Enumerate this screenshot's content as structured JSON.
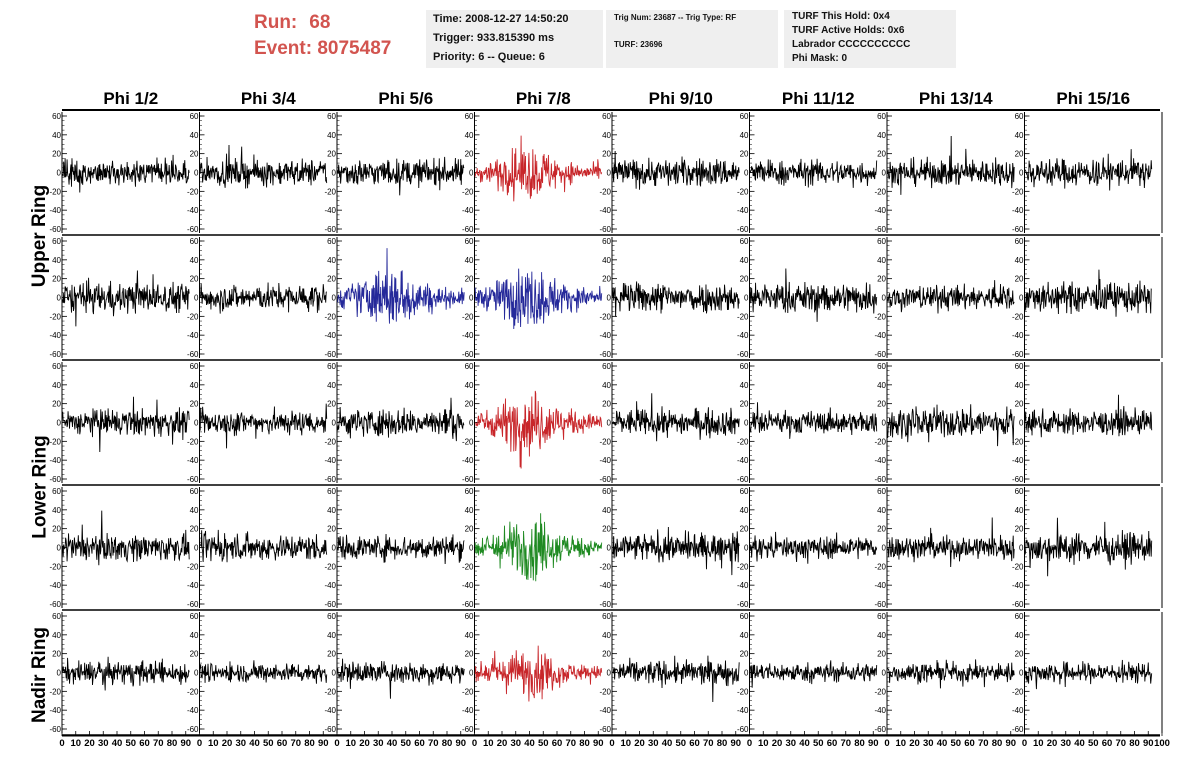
{
  "header": {
    "run_label": "Run:",
    "run_value": "68",
    "event_label": "Event:",
    "event_value": "8075487",
    "time": "Time: 2008-12-27 14:50:20",
    "trigger": "Trigger: 933.815390 ms",
    "priority": "Priority: 6 -- Queue: 6",
    "trig_num": "Trig Num: 23687 -- Trig Type: RF",
    "turf": "TURF: 23696",
    "turf_this_hold": "TURF This Hold: 0x4",
    "turf_active_holds": "TURF Active Holds: 0x6",
    "labrador": "Labrador CCCCCCCCCC",
    "phi_mask": "Phi Mask: 0"
  },
  "rings": [
    {
      "label": "Upper Ring"
    },
    {
      "label": "Lower Ring"
    },
    {
      "label": "Nadir Ring"
    }
  ],
  "chart_data": {
    "type": "line",
    "columns": [
      "Phi 1/2",
      "Phi 3/4",
      "Phi 5/6",
      "Phi 7/8",
      "Phi 9/10",
      "Phi 11/12",
      "Phi 13/14",
      "Phi 15/16"
    ],
    "xlim": [
      0,
      100
    ],
    "ylim": [
      -60,
      60
    ],
    "x_ticks": [
      0,
      10,
      20,
      30,
      40,
      50,
      60,
      70,
      80,
      90
    ],
    "last_x_ticks": [
      0,
      10,
      20,
      30,
      40,
      50,
      60,
      70,
      80,
      90,
      100
    ],
    "y_ticks": [
      60,
      40,
      20,
      0,
      -20,
      -40,
      -60
    ],
    "samples_per_trace": 260,
    "trace_x_end": 92,
    "colors": {
      "default": "#000000",
      "red": "#c8262a",
      "blue": "#25299a",
      "green": "#1f8a22"
    },
    "highlights": [
      {
        "row": 0,
        "col": 3,
        "color": "red",
        "amp": 22
      },
      {
        "row": 1,
        "col": 2,
        "color": "blue",
        "amp": 26
      },
      {
        "row": 1,
        "col": 3,
        "color": "blue",
        "amp": 26
      },
      {
        "row": 2,
        "col": 3,
        "color": "red",
        "amp": 26
      },
      {
        "row": 3,
        "col": 3,
        "color": "green",
        "amp": 26
      },
      {
        "row": 4,
        "col": 3,
        "color": "red",
        "amp": 20
      }
    ],
    "base_amplitude": [
      [
        14,
        14,
        14,
        0,
        15,
        13,
        14,
        15
      ],
      [
        16,
        14,
        0,
        0,
        16,
        16,
        13,
        16
      ],
      [
        14,
        13,
        15,
        0,
        14,
        12,
        16,
        13
      ],
      [
        14,
        14,
        13,
        0,
        15,
        12,
        13,
        16
      ],
      [
        12,
        10,
        12,
        0,
        13,
        10,
        10,
        11
      ]
    ]
  }
}
